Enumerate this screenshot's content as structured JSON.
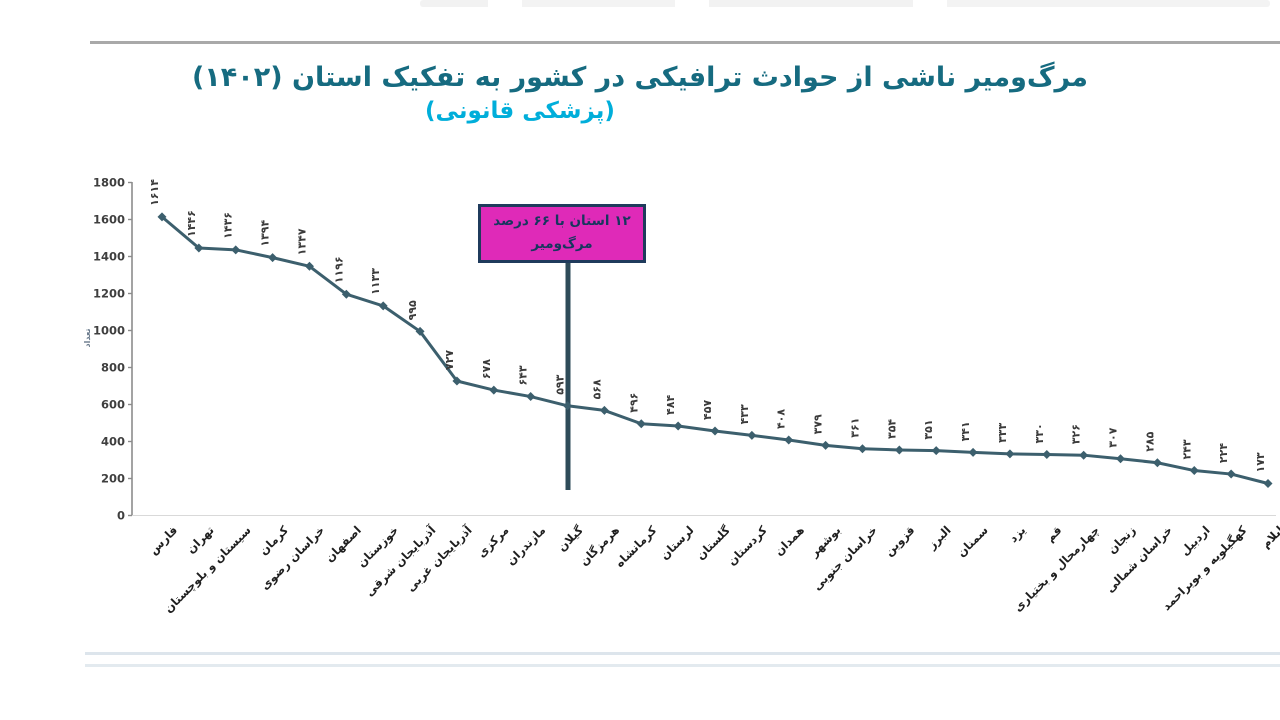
{
  "header": {
    "title": "مرگ‌ومیر ناشی از حوادث ترافیکی در کشور به تفکیک استان (۱۴۰۲)",
    "subtitle": "(پزشکی قانونی)",
    "title_color": "#166b80",
    "subtitle_color": "#00aeda",
    "top_rule_color": "#a9a9a9"
  },
  "annotation": {
    "line1": "۱۲ استان با ۶۶ درصد",
    "line2": "مرگ‌ومیر",
    "bg_color": "#df2ab8",
    "border_color": "#1f3b5c",
    "text_color": "#17375e",
    "pointer_line_color": "#2e4b59",
    "anchor_category": "گیلان"
  },
  "footer": {
    "rule_color_1": "#dde5ec",
    "rule_color_2": "#e3eaef"
  },
  "chart_data": {
    "type": "line",
    "title": "مرگ‌ومیر ناشی از حوادث ترافیکی در کشور به تفکیک استان (۱۴۰۲)",
    "subtitle": "(پزشکی قانونی)",
    "ylabel": "تعداد",
    "xlabel": "",
    "ylim": [
      0,
      1800
    ],
    "yticks": [
      0,
      200,
      400,
      600,
      800,
      1000,
      1200,
      1400,
      1600,
      1800
    ],
    "grid": false,
    "legend": false,
    "line_color": "#3c5f6d",
    "marker": "diamond",
    "axis_color": "#8c8c8c",
    "tick_label_color": "#3f3f3f",
    "value_label_color": "#3b3b3b",
    "categories": [
      "فارس",
      "تهران",
      "سیستان و بلوچستان",
      "کرمان",
      "خراسان رضوی",
      "اصفهان",
      "خوزستان",
      "آذربایجان شرقی",
      "آذربایجان غربی",
      "مرکزی",
      "مازندران",
      "گیلان",
      "هرمزگان",
      "کرمانشاه",
      "لرستان",
      "گلستان",
      "کردستان",
      "همدان",
      "بوشهر",
      "خراسان جنوبی",
      "قزوین",
      "البرز",
      "سمنان",
      "یزد",
      "قم",
      "چهارمحال و بختیاری",
      "زنجان",
      "خراسان شمالی",
      "اردبیل",
      "کهگیلویه و بویراحمد",
      "ایلام"
    ],
    "values": [
      1614,
      1446,
      1436,
      1394,
      1347,
      1196,
      1133,
      995,
      727,
      678,
      643,
      593,
      568,
      496,
      484,
      457,
      433,
      408,
      379,
      361,
      354,
      351,
      341,
      333,
      330,
      326,
      307,
      285,
      243,
      224,
      173
    ],
    "value_labels": [
      "۱۶۱۴",
      "۱۴۴۶",
      "۱۴۳۶",
      "۱۳۹۴",
      "۱۳۴۷",
      "۱۱۹۶",
      "۱۱۳۳",
      "۹۹۵",
      "۷۲۷",
      "۶۷۸",
      "۶۴۳",
      "۵۹۳",
      "۵۶۸",
      "۴۹۶",
      "۴۸۴",
      "۴۵۷",
      "۴۳۳",
      "۴۰۸",
      "۳۷۹",
      "۳۶۱",
      "۳۵۴",
      "۳۵۱",
      "۳۴۱",
      "۳۳۳",
      "۳۳۰",
      "۳۲۶",
      "۳۰۷",
      "۲۸۵",
      "۲۴۳",
      "۲۲۴",
      "۱۷۳"
    ]
  }
}
